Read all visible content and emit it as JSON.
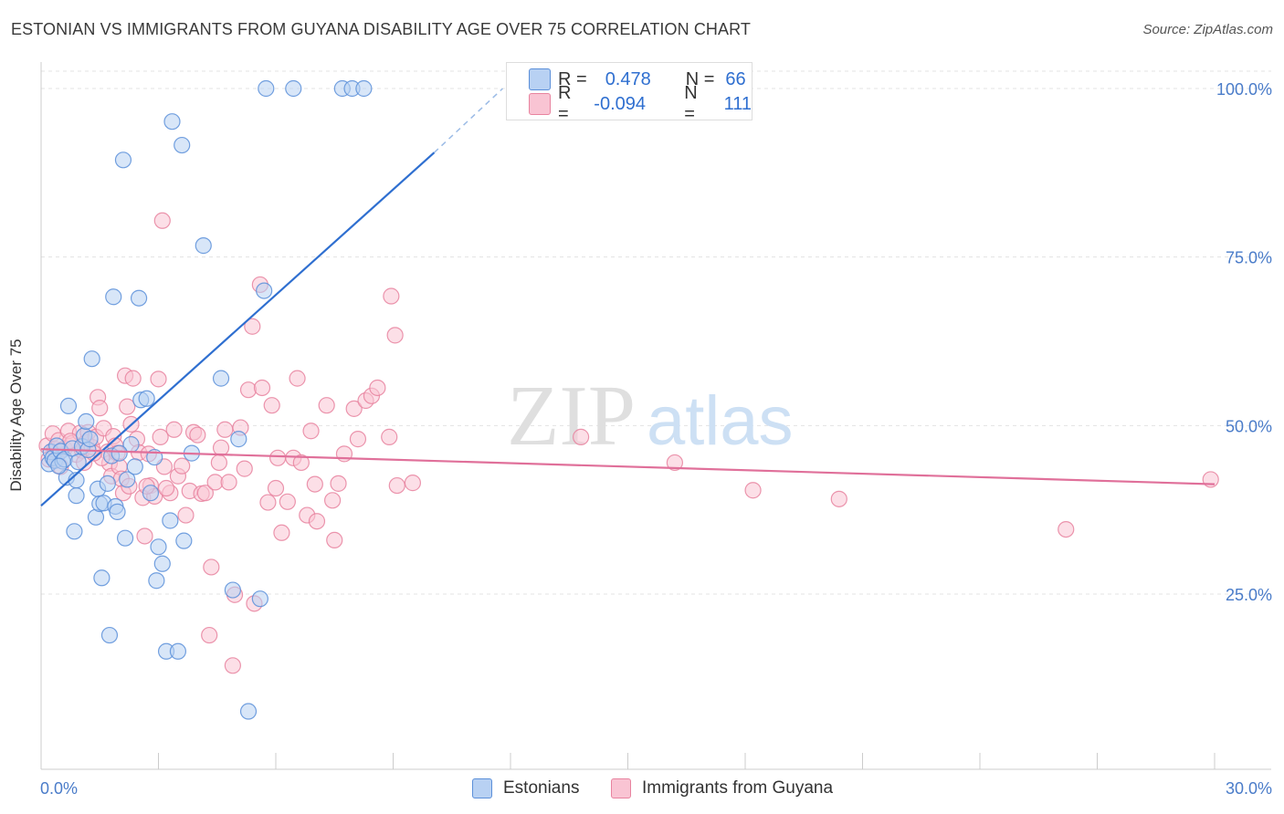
{
  "title": "ESTONIAN VS IMMIGRANTS FROM GUYANA DISABILITY AGE OVER 75 CORRELATION CHART",
  "source": "Source: ZipAtlas.com",
  "watermark": {
    "zip": "ZIP",
    "atlas": "atlas"
  },
  "stats": {
    "r_label": "R =",
    "n_label": "N =",
    "estonians": {
      "r": "0.478",
      "n": "66"
    },
    "guyana": {
      "r": "-0.094",
      "n": "111"
    }
  },
  "legend": {
    "estonians": "Estonians",
    "guyana": "Immigrants from Guyana"
  },
  "colors": {
    "estonians_fill": "#b8d1f3",
    "estonians_stroke": "#5b8fd9",
    "estonians_line": "#2f6fd0",
    "guyana_fill": "#f9c4d3",
    "guyana_stroke": "#e8839f",
    "guyana_line": "#e0709a",
    "tick_label": "#4a7cc9",
    "grid": "#e3e3e3"
  },
  "chart_data": {
    "type": "scatter",
    "xlabel": "",
    "ylabel": "Disability Age Over 75",
    "xlim": [
      0,
      30
    ],
    "ylim": [
      0,
      102
    ],
    "x_tick_labels": [
      {
        "value": 0,
        "label": "0.0%"
      },
      {
        "value": 30,
        "label": "30.0%"
      }
    ],
    "y_tick_labels": [
      {
        "value": 25,
        "label": "25.0%"
      },
      {
        "value": 50,
        "label": "50.0%"
      },
      {
        "value": 75,
        "label": "75.0%"
      },
      {
        "value": 100,
        "label": "100.0%"
      }
    ],
    "grid": true,
    "legend_position": "bottom-center",
    "series": [
      {
        "name": "Estonians",
        "r": 0.478,
        "n": 66,
        "trend": {
          "x": [
            0,
            10.05
          ],
          "y": [
            38.1,
            90.5
          ],
          "dashed_to": {
            "x": 11.8,
            "y": 100
          }
        },
        "points": [
          [
            0.2,
            44.3
          ],
          [
            0.25,
            46.1
          ],
          [
            0.3,
            45.2
          ],
          [
            0.35,
            44.8
          ],
          [
            0.4,
            47.0
          ],
          [
            0.5,
            46.2
          ],
          [
            0.55,
            44.7
          ],
          [
            0.6,
            45.0
          ],
          [
            0.65,
            42.3
          ],
          [
            0.7,
            52.9
          ],
          [
            0.8,
            46.6
          ],
          [
            0.85,
            34.3
          ],
          [
            0.9,
            39.6
          ],
          [
            0.9,
            41.9
          ],
          [
            0.95,
            44.6
          ],
          [
            1.05,
            46.9
          ],
          [
            1.1,
            48.5
          ],
          [
            1.15,
            50.6
          ],
          [
            1.2,
            46.4
          ],
          [
            1.3,
            59.9
          ],
          [
            1.4,
            36.4
          ],
          [
            1.45,
            40.6
          ],
          [
            1.5,
            38.4
          ],
          [
            1.55,
            27.4
          ],
          [
            1.6,
            38.5
          ],
          [
            1.7,
            41.4
          ],
          [
            1.75,
            18.9
          ],
          [
            1.8,
            45.5
          ],
          [
            1.85,
            69.1
          ],
          [
            1.9,
            38.0
          ],
          [
            1.95,
            37.2
          ],
          [
            2.1,
            89.4
          ],
          [
            2.15,
            33.3
          ],
          [
            2.2,
            42.0
          ],
          [
            2.3,
            47.2
          ],
          [
            2.4,
            43.9
          ],
          [
            2.5,
            68.9
          ],
          [
            2.55,
            53.8
          ],
          [
            2.7,
            54.0
          ],
          [
            2.8,
            40.0
          ],
          [
            2.9,
            45.3
          ],
          [
            2.95,
            27.0
          ],
          [
            3.0,
            32.0
          ],
          [
            3.1,
            29.5
          ],
          [
            3.2,
            16.5
          ],
          [
            3.3,
            35.9
          ],
          [
            3.35,
            95.1
          ],
          [
            3.5,
            16.5
          ],
          [
            3.6,
            91.6
          ],
          [
            3.65,
            32.9
          ],
          [
            3.85,
            45.9
          ],
          [
            4.15,
            76.7
          ],
          [
            4.6,
            57.0
          ],
          [
            4.9,
            25.6
          ],
          [
            5.05,
            48.0
          ],
          [
            5.3,
            7.6
          ],
          [
            5.6,
            24.3
          ],
          [
            5.7,
            70.0
          ],
          [
            5.75,
            100.0
          ],
          [
            6.45,
            100.0
          ],
          [
            7.7,
            100.0
          ],
          [
            7.95,
            100.0
          ],
          [
            8.25,
            100.0
          ],
          [
            2.0,
            45.9
          ],
          [
            1.25,
            48.0
          ],
          [
            0.45,
            44.0
          ]
        ]
      },
      {
        "name": "Immigrants from Guyana",
        "r": -0.094,
        "n": 111,
        "trend": {
          "x": [
            0,
            30
          ],
          "y": [
            46.5,
            41.3
          ]
        },
        "points": [
          [
            0.15,
            47.0
          ],
          [
            0.2,
            45.0
          ],
          [
            0.3,
            48.8
          ],
          [
            0.35,
            46.5
          ],
          [
            0.4,
            44.9
          ],
          [
            0.45,
            47.8
          ],
          [
            0.5,
            43.9
          ],
          [
            0.6,
            46.6
          ],
          [
            0.7,
            49.2
          ],
          [
            0.8,
            47.4
          ],
          [
            0.9,
            45.7
          ],
          [
            1.0,
            48.9
          ],
          [
            1.05,
            46.3
          ],
          [
            1.1,
            44.5
          ],
          [
            1.15,
            47.5
          ],
          [
            1.2,
            49.0
          ],
          [
            1.3,
            46.8
          ],
          [
            1.4,
            48.3
          ],
          [
            1.45,
            54.2
          ],
          [
            1.5,
            52.6
          ],
          [
            1.6,
            49.6
          ],
          [
            1.7,
            46.1
          ],
          [
            1.75,
            44.4
          ],
          [
            1.8,
            42.5
          ],
          [
            1.85,
            48.4
          ],
          [
            1.9,
            47.0
          ],
          [
            1.95,
            45.9
          ],
          [
            2.0,
            43.9
          ],
          [
            2.05,
            42.1
          ],
          [
            2.1,
            40.0
          ],
          [
            2.15,
            57.4
          ],
          [
            2.2,
            52.8
          ],
          [
            2.3,
            50.2
          ],
          [
            2.35,
            57.0
          ],
          [
            2.45,
            48.0
          ],
          [
            2.5,
            46.0
          ],
          [
            2.6,
            39.3
          ],
          [
            2.65,
            33.6
          ],
          [
            2.75,
            45.8
          ],
          [
            2.8,
            41.1
          ],
          [
            2.9,
            39.5
          ],
          [
            3.0,
            56.9
          ],
          [
            3.05,
            48.3
          ],
          [
            3.1,
            80.4
          ],
          [
            3.15,
            43.9
          ],
          [
            3.3,
            40.0
          ],
          [
            3.4,
            49.4
          ],
          [
            3.5,
            42.5
          ],
          [
            3.6,
            44.0
          ],
          [
            3.7,
            36.7
          ],
          [
            3.8,
            40.3
          ],
          [
            3.9,
            49.0
          ],
          [
            4.0,
            48.6
          ],
          [
            4.1,
            39.9
          ],
          [
            4.2,
            40.0
          ],
          [
            4.3,
            18.9
          ],
          [
            4.35,
            29.0
          ],
          [
            4.45,
            41.6
          ],
          [
            4.55,
            44.5
          ],
          [
            4.6,
            46.7
          ],
          [
            4.7,
            49.4
          ],
          [
            4.8,
            41.6
          ],
          [
            4.95,
            24.9
          ],
          [
            5.1,
            49.7
          ],
          [
            5.2,
            43.6
          ],
          [
            5.3,
            55.3
          ],
          [
            5.4,
            64.7
          ],
          [
            5.45,
            23.6
          ],
          [
            5.6,
            70.9
          ],
          [
            5.65,
            55.6
          ],
          [
            5.8,
            38.6
          ],
          [
            5.9,
            53.0
          ],
          [
            6.0,
            40.7
          ],
          [
            6.05,
            45.2
          ],
          [
            6.15,
            34.1
          ],
          [
            6.3,
            38.7
          ],
          [
            6.45,
            45.2
          ],
          [
            6.55,
            57.0
          ],
          [
            6.65,
            44.5
          ],
          [
            6.8,
            36.7
          ],
          [
            6.9,
            49.2
          ],
          [
            7.0,
            41.3
          ],
          [
            7.05,
            35.8
          ],
          [
            7.3,
            53.0
          ],
          [
            7.45,
            38.9
          ],
          [
            7.5,
            33.0
          ],
          [
            7.6,
            41.4
          ],
          [
            7.75,
            45.8
          ],
          [
            8.0,
            52.5
          ],
          [
            8.1,
            48.0
          ],
          [
            8.3,
            53.7
          ],
          [
            8.45,
            54.4
          ],
          [
            8.6,
            55.6
          ],
          [
            8.9,
            48.3
          ],
          [
            8.95,
            69.2
          ],
          [
            9.05,
            63.4
          ],
          [
            9.1,
            41.1
          ],
          [
            4.9,
            14.4
          ],
          [
            3.2,
            40.7
          ],
          [
            2.7,
            41.0
          ],
          [
            1.55,
            45.2
          ],
          [
            0.75,
            47.7
          ],
          [
            13.8,
            48.3
          ],
          [
            16.2,
            44.5
          ],
          [
            18.2,
            40.4
          ],
          [
            20.4,
            39.1
          ],
          [
            26.2,
            34.6
          ],
          [
            29.9,
            42.0
          ],
          [
            9.5,
            41.5
          ],
          [
            2.25,
            41.0
          ],
          [
            1.35,
            45.9
          ]
        ]
      }
    ]
  }
}
